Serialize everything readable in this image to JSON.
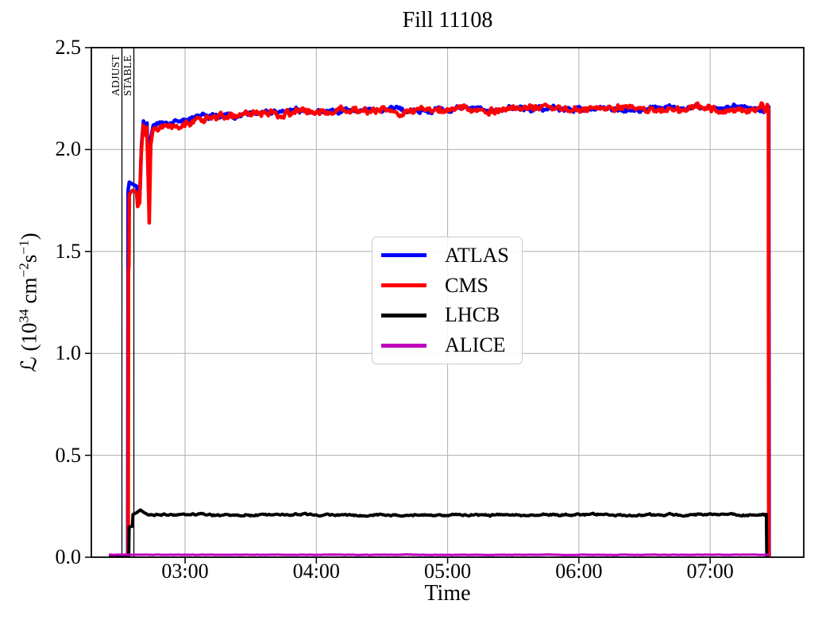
{
  "figure": {
    "title": "Fill 11108",
    "background_color": "#ffffff",
    "spine_color": "#000000",
    "grid_color": "#b0b0b0"
  },
  "axes": {
    "xlabel": "Time",
    "ylabel_parts": {
      "cal": "ℒ",
      "pre": " (10",
      "sup1": "34",
      "mid": " cm",
      "sup2": "−2",
      "s": "s",
      "sup3": "−1",
      "post": ")"
    }
  },
  "chart_data": {
    "type": "line",
    "title": "Fill 11108",
    "xlabel": "Time",
    "ylabel": "ℒ (10³⁴ cm⁻²s⁻¹)",
    "xlim_hours": [
      2.286,
      7.713
    ],
    "ylim": [
      0,
      2.5
    ],
    "grid": true,
    "legend_location": "center",
    "xticks": [
      {
        "hour": 3,
        "label": "03:00"
      },
      {
        "hour": 4,
        "label": "04:00"
      },
      {
        "hour": 5,
        "label": "05:00"
      },
      {
        "hour": 6,
        "label": "06:00"
      },
      {
        "hour": 7,
        "label": "07:00"
      }
    ],
    "yticks": [
      {
        "value": 0.0,
        "label": "0.0"
      },
      {
        "value": 0.5,
        "label": "0.5"
      },
      {
        "value": 1.0,
        "label": "1.0"
      },
      {
        "value": 1.5,
        "label": "1.5"
      },
      {
        "value": 2.0,
        "label": "2.0"
      },
      {
        "value": 2.5,
        "label": "2.5"
      }
    ],
    "annotations": [
      {
        "label": "ADJUST",
        "hour": 2.519
      },
      {
        "label": "STABLE",
        "hour": 2.61
      }
    ],
    "series": [
      {
        "name": "ATLAS",
        "color": "#0000ff",
        "width": 4.5,
        "noise_amp": 0.015,
        "noise_from": 2.77,
        "noise_to": 7.44,
        "seed": 7,
        "points": [
          [
            2.419,
            0.005
          ],
          [
            2.563,
            0.005
          ],
          [
            2.566,
            1.8
          ],
          [
            2.575,
            1.84
          ],
          [
            2.6,
            1.83
          ],
          [
            2.632,
            1.82
          ],
          [
            2.64,
            1.75
          ],
          [
            2.655,
            1.77
          ],
          [
            2.668,
            2.02
          ],
          [
            2.683,
            2.14
          ],
          [
            2.7,
            2.1
          ],
          [
            2.71,
            2.13
          ],
          [
            2.722,
            1.8
          ],
          [
            2.728,
            1.79
          ],
          [
            2.74,
            2.06
          ],
          [
            2.758,
            2.12
          ],
          [
            2.8,
            2.13
          ],
          [
            3.0,
            2.15
          ],
          [
            3.2,
            2.16
          ],
          [
            3.5,
            2.175
          ],
          [
            3.8,
            2.185
          ],
          [
            4.2,
            2.19
          ],
          [
            4.6,
            2.195
          ],
          [
            5.0,
            2.195
          ],
          [
            5.5,
            2.2
          ],
          [
            6.0,
            2.2
          ],
          [
            6.5,
            2.2
          ],
          [
            7.0,
            2.205
          ],
          [
            7.3,
            2.2
          ],
          [
            7.44,
            2.21
          ],
          [
            7.4465,
            2.21
          ],
          [
            7.449,
            0.004
          ]
        ]
      },
      {
        "name": "CMS",
        "color": "#ff0000",
        "width": 4.5,
        "noise_amp": 0.019,
        "noise_from": 2.77,
        "noise_to": 7.437,
        "seed": 13,
        "points": [
          [
            2.419,
            0.004
          ],
          [
            2.567,
            0.004
          ],
          [
            2.569,
            1.4
          ],
          [
            2.572,
            1.43
          ],
          [
            2.575,
            1.78
          ],
          [
            2.6,
            1.8
          ],
          [
            2.63,
            1.79
          ],
          [
            2.639,
            1.72
          ],
          [
            2.654,
            1.74
          ],
          [
            2.666,
            1.98
          ],
          [
            2.681,
            2.12
          ],
          [
            2.698,
            2.07
          ],
          [
            2.708,
            2.11
          ],
          [
            2.72,
            1.85
          ],
          [
            2.727,
            1.64
          ],
          [
            2.738,
            2.02
          ],
          [
            2.756,
            2.1
          ],
          [
            2.8,
            2.12
          ],
          [
            3.0,
            2.14
          ],
          [
            3.2,
            2.155
          ],
          [
            3.5,
            2.17
          ],
          [
            3.8,
            2.18
          ],
          [
            4.2,
            2.19
          ],
          [
            4.6,
            2.19
          ],
          [
            5.0,
            2.195
          ],
          [
            5.5,
            2.195
          ],
          [
            6.0,
            2.2
          ],
          [
            6.5,
            2.195
          ],
          [
            7.0,
            2.2
          ],
          [
            7.3,
            2.195
          ],
          [
            7.4,
            2.22
          ],
          [
            7.425,
            2.18
          ],
          [
            7.435,
            2.23
          ],
          [
            7.444,
            2.2
          ],
          [
            7.446,
            0.004
          ]
        ]
      },
      {
        "name": "LHCB",
        "color": "#000000",
        "width": 4,
        "noise_amp": 0.005,
        "noise_from": 2.72,
        "noise_to": 7.425,
        "seed": 3,
        "points": [
          [
            2.419,
            0.003
          ],
          [
            2.571,
            0.003
          ],
          [
            2.574,
            0.148
          ],
          [
            2.598,
            0.152
          ],
          [
            2.603,
            0.21
          ],
          [
            2.63,
            0.218
          ],
          [
            2.66,
            0.232
          ],
          [
            2.69,
            0.218
          ],
          [
            2.72,
            0.208
          ],
          [
            3.0,
            0.207
          ],
          [
            4.0,
            0.208
          ],
          [
            5.0,
            0.206
          ],
          [
            6.0,
            0.208
          ],
          [
            7.0,
            0.208
          ],
          [
            7.41,
            0.21
          ],
          [
            7.428,
            0.21
          ],
          [
            7.431,
            0.003
          ],
          [
            7.447,
            0.003
          ]
        ]
      },
      {
        "name": "ALICE",
        "color": "#bf00bf",
        "width": 3,
        "noise_amp": 0.0012,
        "noise_from": 2.43,
        "noise_to": 7.43,
        "seed": 5,
        "points": [
          [
            2.419,
            0.012
          ],
          [
            7.447,
            0.012
          ]
        ]
      }
    ]
  }
}
